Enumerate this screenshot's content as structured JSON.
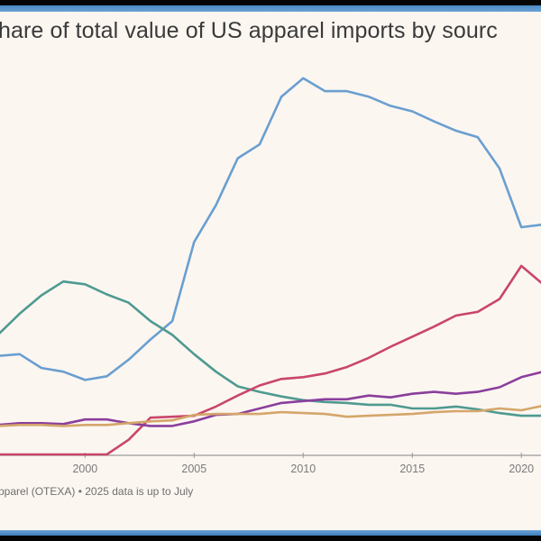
{
  "chart_data": {
    "type": "line",
    "title": "hare of total value of US apparel imports by sourc",
    "source_note": "pparel (OTEXA) • 2025 data is up to July",
    "xlabel": "",
    "ylabel": "",
    "x": [
      1996,
      1997,
      1998,
      1999,
      2000,
      2001,
      2002,
      2003,
      2004,
      2005,
      2006,
      2007,
      2008,
      2009,
      2010,
      2011,
      2012,
      2013,
      2014,
      2015,
      2016,
      2017,
      2018,
      2019,
      2020,
      2021
    ],
    "xlim": [
      1996.1,
      2020.9
    ],
    "ylim": [
      0,
      45
    ],
    "x_ticks": [
      "2000",
      "2005",
      "2010",
      "2015",
      "2020"
    ],
    "x_tick_values": [
      2000,
      2005,
      2010,
      2015,
      2020
    ],
    "grid": false,
    "legend": "none visible",
    "y_units_note": "share of total value (%), estimated; y-axis not visible",
    "series": [
      {
        "name": "blue-series",
        "color": "#6a9fd0",
        "values": [
          10.8,
          11.0,
          9.5,
          9.1,
          8.2,
          8.6,
          10.4,
          12.6,
          14.6,
          23.2,
          27.2,
          32.3,
          33.8,
          39.0,
          41.0,
          39.6,
          39.6,
          39.0,
          38.0,
          37.4,
          36.3,
          35.3,
          34.6,
          31.2,
          24.8,
          25.1
        ]
      },
      {
        "name": "teal-series",
        "color": "#4f9a90",
        "values": [
          13.1,
          15.4,
          17.4,
          18.9,
          18.6,
          17.5,
          16.6,
          14.6,
          13.1,
          11.0,
          9.1,
          7.5,
          6.9,
          6.4,
          6.0,
          5.8,
          5.7,
          5.5,
          5.5,
          5.1,
          5.1,
          5.3,
          5.0,
          4.6,
          4.3,
          4.3
        ]
      },
      {
        "name": "red-series",
        "color": "#c9466b",
        "values": [
          0.1,
          0.1,
          0.1,
          0.1,
          0.1,
          0.1,
          1.7,
          4.1,
          4.2,
          4.3,
          5.3,
          6.5,
          7.6,
          8.3,
          8.5,
          8.9,
          9.6,
          10.6,
          11.8,
          12.9,
          14.0,
          15.2,
          15.6,
          17.0,
          20.6,
          18.6
        ]
      },
      {
        "name": "purple-series",
        "color": "#8a3f9c",
        "values": [
          3.3,
          3.5,
          3.5,
          3.4,
          3.9,
          3.9,
          3.5,
          3.2,
          3.2,
          3.7,
          4.4,
          4.5,
          5.1,
          5.7,
          5.9,
          6.1,
          6.1,
          6.5,
          6.3,
          6.7,
          6.9,
          6.7,
          6.9,
          7.4,
          8.5,
          9.1
        ]
      },
      {
        "name": "tan-series",
        "color": "#d4a66a",
        "values": [
          3.2,
          3.3,
          3.3,
          3.2,
          3.3,
          3.3,
          3.5,
          3.7,
          3.8,
          4.4,
          4.5,
          4.5,
          4.5,
          4.7,
          4.6,
          4.5,
          4.2,
          4.3,
          4.4,
          4.5,
          4.7,
          4.8,
          4.8,
          5.1,
          4.9,
          5.4
        ]
      }
    ]
  }
}
